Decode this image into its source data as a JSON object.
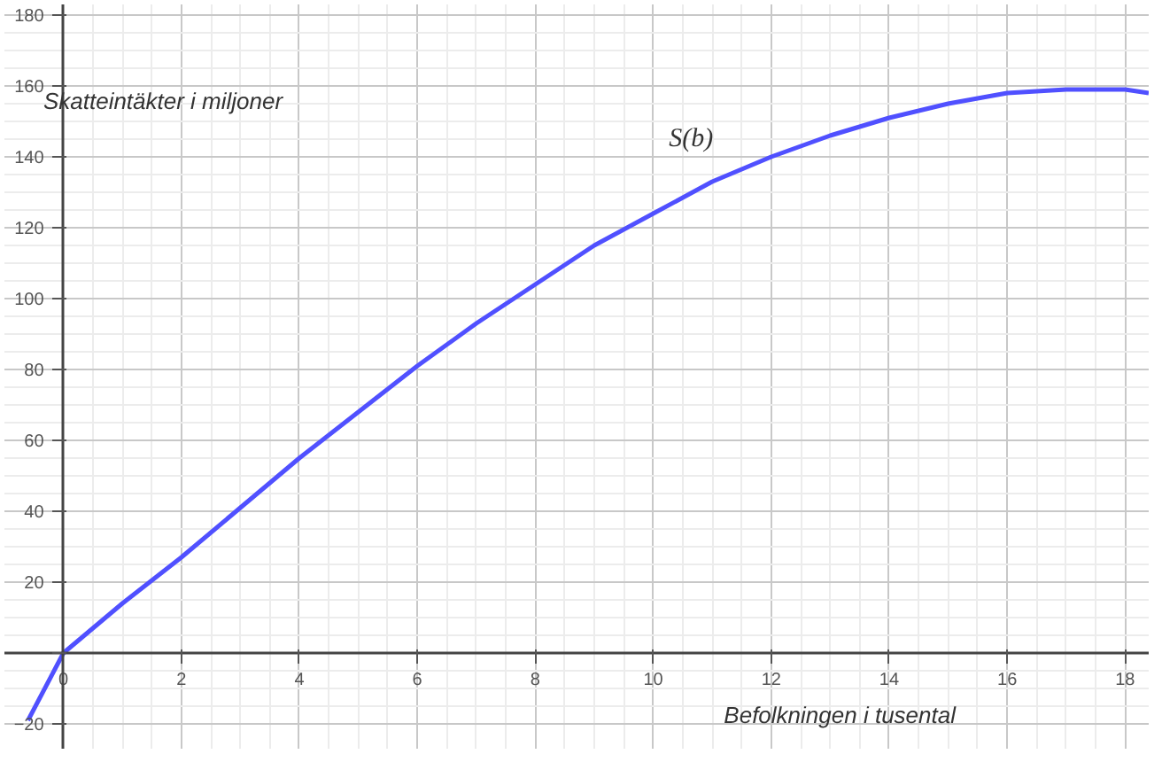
{
  "chart_data": {
    "type": "line",
    "xlabel": "Befolkningen i tusental",
    "ylabel": "Skatteintäkter i miljoner",
    "annotations": [
      "S(b)"
    ],
    "x": [
      -0.6,
      0,
      1,
      2,
      3,
      4,
      5,
      6,
      7,
      8,
      9,
      10,
      11,
      12,
      13,
      14,
      15,
      16,
      17,
      17.5,
      18,
      18.4
    ],
    "series": [
      {
        "color": "#5050ff",
        "values": [
          -19,
          0,
          14,
          27,
          41,
          55,
          68,
          81,
          93,
          104,
          115,
          124,
          133,
          140,
          146,
          151,
          155,
          158,
          159,
          159,
          159,
          158
        ]
      }
    ],
    "xlim": [
      -1,
      18.4
    ],
    "ylim": [
      -27,
      183
    ],
    "xticks": [
      0,
      2,
      4,
      6,
      8,
      10,
      12,
      14,
      16,
      18
    ],
    "yticks": [
      -20,
      {
        "value": 0,
        "label": null
      },
      20,
      40,
      60,
      80,
      100,
      120,
      140,
      160,
      180
    ],
    "grid": true,
    "marker": "none",
    "line_style": "solid"
  }
}
